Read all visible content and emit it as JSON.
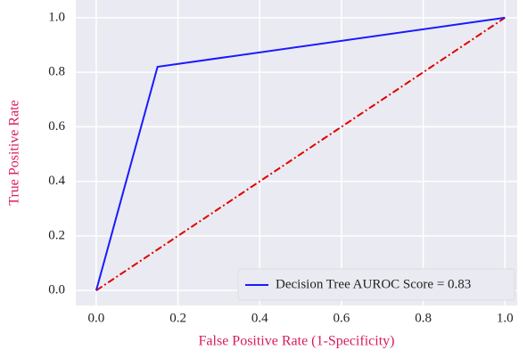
{
  "chart_data": {
    "type": "line",
    "xlabel": "False Positive Rate (1-Specificity)",
    "ylabel": "True Positive Rate",
    "label_color": "#d81b60",
    "xlim": [
      -0.05,
      1.03
    ],
    "ylim": [
      -0.055,
      1.065
    ],
    "xticks": [
      {
        "value": 0,
        "label": "0.0"
      },
      0.2,
      0.4,
      0.6,
      0.8,
      {
        "value": 1,
        "label": "1.0"
      }
    ],
    "yticks": [
      {
        "value": 0,
        "label": "0.0"
      },
      0.2,
      0.4,
      0.6,
      0.8,
      {
        "value": 1,
        "label": "1.0"
      }
    ],
    "grid": true,
    "legend": "lower right",
    "series": [
      {
        "name": "Decision Tree AUROC Score = 0.83",
        "color": "#1a1aff",
        "x": [
          0,
          0.15,
          1
        ],
        "values": [
          0,
          0.82,
          1
        ]
      },
      {
        "color": "#e00000",
        "dash": "dashdot",
        "x": [
          0,
          1
        ],
        "values": [
          0,
          1
        ]
      }
    ]
  }
}
